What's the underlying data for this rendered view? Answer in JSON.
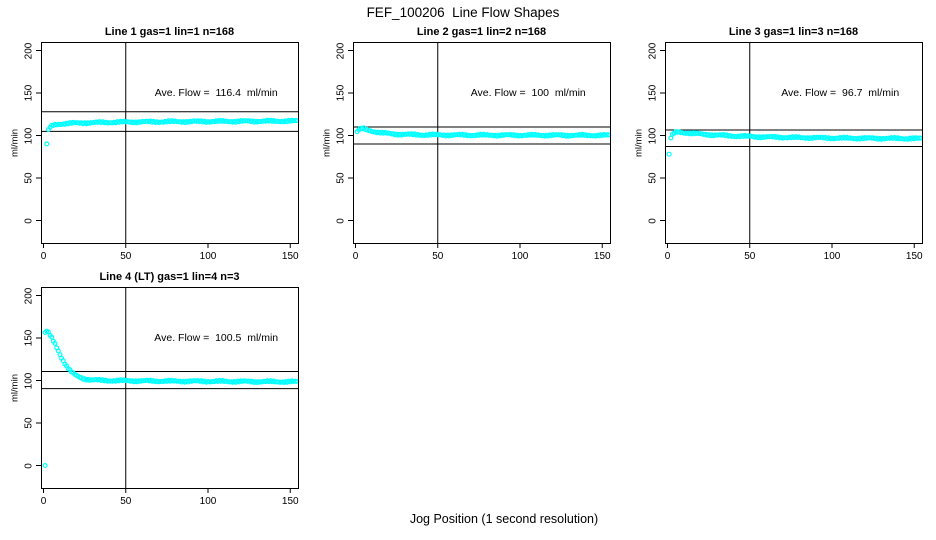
{
  "title": "FEF_100206  Line Flow Shapes",
  "xlabel": "Jog Position (1 second resolution)",
  "marker_color": "#00FFFF",
  "chart_data": [
    {
      "type": "scatter",
      "title": "Line 1 gas=1 lin=1 n=168",
      "ylabel": "ml/min",
      "annotation": "Ave. Flow =  116.4  ml/min",
      "ave_flow": 116.4,
      "hlines": [
        128.0,
        104.8
      ],
      "vline_x": 50,
      "x_ticks": [
        0,
        50,
        100,
        150
      ],
      "y_ticks": [
        0,
        50,
        100,
        150,
        200
      ],
      "xlim": [
        -2,
        155
      ],
      "ylim": [
        -26,
        210
      ],
      "points": [
        [
          2,
          90
        ],
        [
          3,
          106
        ],
        [
          4,
          109.5
        ],
        [
          5,
          111
        ],
        [
          6,
          112
        ],
        [
          8,
          113
        ],
        [
          10,
          113.5
        ],
        [
          13,
          114
        ],
        [
          16,
          114.3
        ],
        [
          20,
          114.6
        ],
        [
          25,
          114.9
        ],
        [
          30,
          115.1
        ],
        [
          40,
          115.5
        ],
        [
          50,
          115.8
        ],
        [
          60,
          116
        ],
        [
          80,
          116.3
        ],
        [
          100,
          116.5
        ],
        [
          120,
          116.7
        ],
        [
          140,
          116.9
        ],
        [
          154,
          117
        ]
      ],
      "outliers": []
    },
    {
      "type": "scatter",
      "title": "Line 2 gas=1 lin=2 n=168",
      "ylabel": "ml/min",
      "annotation": "Ave. Flow =  100  ml/min",
      "ave_flow": 100,
      "hlines": [
        110.0,
        90.0
      ],
      "vline_x": 50,
      "x_ticks": [
        0,
        50,
        100,
        150
      ],
      "y_ticks": [
        0,
        50,
        100,
        150,
        200
      ],
      "xlim": [
        -2,
        155
      ],
      "ylim": [
        -26,
        210
      ],
      "points": [
        [
          1,
          104
        ],
        [
          2,
          106.5
        ],
        [
          3,
          107.5
        ],
        [
          4,
          108
        ],
        [
          5,
          107.8
        ],
        [
          6,
          107.2
        ],
        [
          8,
          106.2
        ],
        [
          10,
          105.2
        ],
        [
          13,
          104
        ],
        [
          16,
          103
        ],
        [
          20,
          102.2
        ],
        [
          25,
          101.6
        ],
        [
          30,
          101.2
        ],
        [
          40,
          100.8
        ],
        [
          50,
          100.6
        ],
        [
          60,
          100.5
        ],
        [
          80,
          100.4
        ],
        [
          100,
          100.3
        ],
        [
          120,
          100.3
        ],
        [
          140,
          100.2
        ],
        [
          154,
          100.2
        ]
      ],
      "outliers": []
    },
    {
      "type": "scatter",
      "title": "Line 3 gas=1 lin=3 n=168",
      "ylabel": "ml/min",
      "annotation": "Ave. Flow =  96.7  ml/min",
      "ave_flow": 96.7,
      "hlines": [
        106.4,
        87.0
      ],
      "vline_x": 50,
      "x_ticks": [
        0,
        50,
        100,
        150
      ],
      "y_ticks": [
        0,
        50,
        100,
        150,
        200
      ],
      "xlim": [
        -2,
        155
      ],
      "ylim": [
        -26,
        210
      ],
      "points": [
        [
          2,
          97
        ],
        [
          3,
          100.5
        ],
        [
          4,
          102.5
        ],
        [
          5,
          103.5
        ],
        [
          6,
          104
        ],
        [
          8,
          103.8
        ],
        [
          10,
          103.4
        ],
        [
          15,
          102.5
        ],
        [
          20,
          101.7
        ],
        [
          25,
          101
        ],
        [
          30,
          100.4
        ],
        [
          40,
          99.5
        ],
        [
          50,
          98.8
        ],
        [
          60,
          98.2
        ],
        [
          80,
          97.5
        ],
        [
          100,
          97
        ],
        [
          120,
          96.7
        ],
        [
          140,
          96.5
        ],
        [
          154,
          96.4
        ]
      ],
      "outliers": [
        [
          1,
          78
        ]
      ]
    },
    {
      "type": "scatter",
      "title": "Line 4 (LT) gas=1 lin=4 n=3",
      "ylabel": "ml/min",
      "annotation": "Ave. Flow =  100.5  ml/min",
      "ave_flow": 100.5,
      "hlines": [
        110.6,
        90.5
      ],
      "vline_x": 50,
      "x_ticks": [
        0,
        50,
        100,
        150
      ],
      "y_ticks": [
        0,
        50,
        100,
        150,
        200
      ],
      "xlim": [
        -2,
        155
      ],
      "ylim": [
        -26,
        210
      ],
      "points": [
        [
          1,
          156
        ],
        [
          2,
          158
        ],
        [
          3,
          156
        ],
        [
          4,
          153
        ],
        [
          5,
          150
        ],
        [
          6,
          146.5
        ],
        [
          7,
          143
        ],
        [
          8,
          139
        ],
        [
          9,
          135
        ],
        [
          10,
          131
        ],
        [
          11,
          127
        ],
        [
          12,
          123.5
        ],
        [
          13,
          120
        ],
        [
          14,
          117
        ],
        [
          15,
          114.5
        ],
        [
          16,
          112
        ],
        [
          17,
          110
        ],
        [
          18,
          108.3
        ],
        [
          19,
          106.8
        ],
        [
          20,
          105.5
        ],
        [
          22,
          103.8
        ],
        [
          24,
          102.5
        ],
        [
          26,
          101.7
        ],
        [
          28,
          101
        ],
        [
          30,
          100.6
        ],
        [
          35,
          100.1
        ],
        [
          40,
          99.9
        ],
        [
          50,
          99.7
        ],
        [
          60,
          99.5
        ],
        [
          80,
          99.2
        ],
        [
          100,
          99
        ],
        [
          120,
          98.8
        ],
        [
          140,
          98.6
        ],
        [
          154,
          98.5
        ]
      ],
      "outliers": [
        [
          1,
          0
        ]
      ]
    }
  ]
}
